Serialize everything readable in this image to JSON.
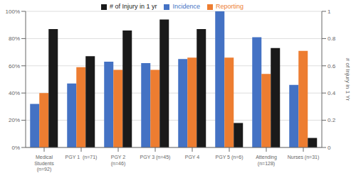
{
  "chart_data": {
    "type": "bar",
    "categories": [
      "Medical\nStudents\n(n=92)",
      "PGY 1  (n=71)",
      "PGY 2\n(n=46)",
      "PGY 3 (n=45)",
      "PGY 4",
      "PGY 5 (n=6)",
      "Attending\n(n=128)",
      "Nurses (n=31)"
    ],
    "series": [
      {
        "name": "Incidence",
        "color": "#4472C4",
        "values": [
          0.32,
          0.47,
          0.63,
          0.62,
          0.65,
          1.0,
          0.81,
          0.46
        ]
      },
      {
        "name": "Reporting",
        "color": "#ED7D31",
        "values": [
          0.4,
          0.59,
          0.57,
          0.57,
          0.66,
          0.66,
          0.54,
          0.71
        ]
      },
      {
        "name": "# of Injury in 1 yr",
        "color": "#1A1A1A",
        "values": [
          0.87,
          0.67,
          0.86,
          0.94,
          0.87,
          0.18,
          0.73,
          0.07
        ],
        "axis": "y2"
      }
    ],
    "y2label": "# of Injury in 1 Yr",
    "ylim": [
      0,
      1.0
    ],
    "yticks": [
      {
        "value": 0.0,
        "label": "0%"
      },
      {
        "value": 0.2,
        "label": "20%"
      },
      {
        "value": 0.4,
        "label": "40%"
      },
      {
        "value": 0.6,
        "label": "60%"
      },
      {
        "value": 0.8,
        "label": "80%"
      },
      {
        "value": 1.0,
        "label": "100%"
      }
    ],
    "y2lim": [
      0,
      1.0
    ],
    "y2ticks": [
      0,
      0.2,
      0.4,
      0.6,
      0.8,
      1
    ],
    "grid": true,
    "legend": "top"
  }
}
